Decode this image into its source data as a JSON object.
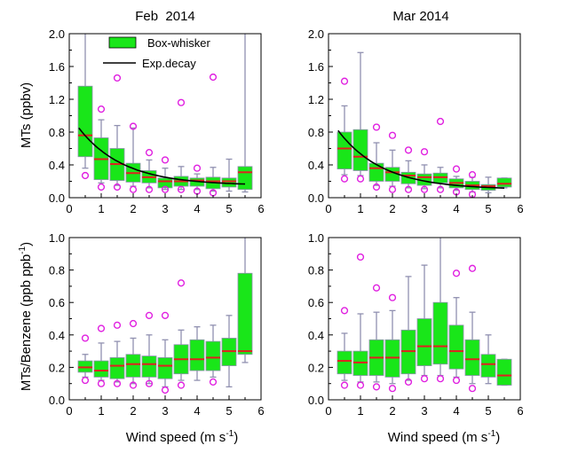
{
  "figure": {
    "xlabel_main": "Wind speed (m s",
    "xlabel_sup": "-1",
    "xlabel_close": ")",
    "ylabel_top": "MTs (ppbv)",
    "ylabel_bottom_main": "MTs/Benzene (ppb ppb",
    "ylabel_bottom_sup": "-1",
    "ylabel_bottom_close": ")",
    "legend": {
      "box_label": "Box-whisker",
      "line_label": "Exp.decay"
    },
    "colors": {
      "box_fill": "#19e619",
      "median": "#e02020",
      "whisker": "#9090b0",
      "outlier": "#e020e0",
      "curve": "#000000"
    }
  },
  "chart_data": [
    {
      "type": "box",
      "title": "Feb  2014",
      "ylabel": "MTs (ppbv)",
      "xlabel": "",
      "xlim": [
        0,
        6
      ],
      "ylim": [
        0,
        2.0
      ],
      "xticks": [
        0,
        1,
        2,
        3,
        4,
        5,
        6
      ],
      "yticks": [
        "0.0",
        "0.4",
        "0.8",
        "1.2",
        "1.6",
        "2.0"
      ],
      "legend": true,
      "boxes": [
        {
          "x": 0.5,
          "q1": 0.5,
          "median": 0.76,
          "q3": 1.36,
          "wlo": 0.36,
          "whi": 2.0,
          "outliers": [
            0.27
          ]
        },
        {
          "x": 1.0,
          "q1": 0.22,
          "median": 0.47,
          "q3": 0.73,
          "wlo": 0.18,
          "whi": 0.95,
          "outliers": [
            1.08,
            0.13
          ]
        },
        {
          "x": 1.5,
          "q1": 0.21,
          "median": 0.41,
          "q3": 0.6,
          "wlo": 0.15,
          "whi": 0.88,
          "outliers": [
            1.46,
            0.13
          ]
        },
        {
          "x": 2.0,
          "q1": 0.19,
          "median": 0.3,
          "q3": 0.42,
          "wlo": 0.14,
          "whi": 0.85,
          "outliers": [
            0.87,
            0.1
          ]
        },
        {
          "x": 2.5,
          "q1": 0.18,
          "median": 0.25,
          "q3": 0.33,
          "wlo": 0.12,
          "whi": 0.46,
          "outliers": [
            0.55,
            0.1
          ]
        },
        {
          "x": 3.0,
          "q1": 0.12,
          "median": 0.2,
          "q3": 0.24,
          "wlo": 0.1,
          "whi": 0.36,
          "outliers": [
            0.46,
            0.1
          ]
        },
        {
          "x": 3.5,
          "q1": 0.14,
          "median": 0.2,
          "q3": 0.26,
          "wlo": 0.1,
          "whi": 0.38,
          "outliers": [
            1.16,
            0.1
          ]
        },
        {
          "x": 4.0,
          "q1": 0.14,
          "median": 0.21,
          "q3": 0.24,
          "wlo": 0.1,
          "whi": 0.29,
          "outliers": [
            0.36,
            0.08
          ]
        },
        {
          "x": 4.5,
          "q1": 0.11,
          "median": 0.2,
          "q3": 0.25,
          "wlo": 0.08,
          "whi": 0.37,
          "outliers": [
            1.47,
            0.06
          ]
        },
        {
          "x": 5.0,
          "q1": 0.13,
          "median": 0.2,
          "q3": 0.24,
          "wlo": 0.08,
          "whi": 0.47,
          "outliers": []
        },
        {
          "x": 5.5,
          "q1": 0.1,
          "median": 0.31,
          "q3": 0.38,
          "wlo": 0.07,
          "whi": 2.0,
          "outliers": []
        }
      ],
      "curve": {
        "a": 0.7,
        "b": 0.72,
        "c": 0.15
      }
    },
    {
      "type": "box",
      "title": "Mar 2014",
      "ylabel": "",
      "xlabel": "",
      "xlim": [
        0,
        6
      ],
      "ylim": [
        0,
        2.0
      ],
      "xticks": [
        0,
        1,
        2,
        3,
        4,
        5,
        6
      ],
      "yticks": [
        "0.0",
        "0.4",
        "0.8",
        "1.2",
        "1.6",
        "2.0"
      ],
      "legend": false,
      "boxes": [
        {
          "x": 0.5,
          "q1": 0.35,
          "median": 0.6,
          "q3": 0.8,
          "wlo": 0.28,
          "whi": 1.12,
          "outliers": [
            1.42,
            0.23
          ]
        },
        {
          "x": 1.0,
          "q1": 0.33,
          "median": 0.5,
          "q3": 0.83,
          "wlo": 0.27,
          "whi": 1.77,
          "outliers": [
            0.23
          ]
        },
        {
          "x": 1.5,
          "q1": 0.2,
          "median": 0.36,
          "q3": 0.42,
          "wlo": 0.15,
          "whi": 0.67,
          "outliers": [
            0.86,
            0.13
          ]
        },
        {
          "x": 2.0,
          "q1": 0.2,
          "median": 0.31,
          "q3": 0.37,
          "wlo": 0.14,
          "whi": 0.58,
          "outliers": [
            0.76,
            0.1
          ]
        },
        {
          "x": 2.5,
          "q1": 0.17,
          "median": 0.27,
          "q3": 0.31,
          "wlo": 0.12,
          "whi": 0.45,
          "outliers": [
            0.58,
            0.1
          ]
        },
        {
          "x": 3.0,
          "q1": 0.15,
          "median": 0.25,
          "q3": 0.29,
          "wlo": 0.11,
          "whi": 0.4,
          "outliers": [
            0.56,
            0.1
          ]
        },
        {
          "x": 3.5,
          "q1": 0.18,
          "median": 0.25,
          "q3": 0.3,
          "wlo": 0.12,
          "whi": 0.37,
          "outliers": [
            0.93,
            0.1
          ]
        },
        {
          "x": 4.0,
          "q1": 0.12,
          "median": 0.18,
          "q3": 0.23,
          "wlo": 0.09,
          "whi": 0.26,
          "outliers": [
            0.35,
            0.07
          ]
        },
        {
          "x": 4.5,
          "q1": 0.1,
          "median": 0.15,
          "q3": 0.2,
          "wlo": 0.07,
          "whi": 0.25,
          "outliers": [
            0.28,
            0.04
          ]
        },
        {
          "x": 5.0,
          "q1": 0.09,
          "median": 0.14,
          "q3": 0.16,
          "wlo": 0.06,
          "whi": 0.25,
          "outliers": []
        },
        {
          "x": 5.5,
          "q1": 0.13,
          "median": 0.17,
          "q3": 0.24,
          "wlo": 0.12,
          "whi": 0.24,
          "outliers": []
        }
      ],
      "curve": {
        "a": 0.72,
        "b": 0.72,
        "c": 0.1
      }
    },
    {
      "type": "box",
      "title": "",
      "ylabel": "MTs/Benzene (ppb ppb-1)",
      "xlabel": "Wind speed (m s-1)",
      "xlim": [
        0,
        6
      ],
      "ylim": [
        0,
        1.0
      ],
      "xticks": [
        0,
        1,
        2,
        3,
        4,
        5,
        6
      ],
      "yticks": [
        "0.0",
        "0.2",
        "0.4",
        "0.6",
        "0.8",
        "1.0"
      ],
      "legend": false,
      "boxes": [
        {
          "x": 0.5,
          "q1": 0.17,
          "median": 0.2,
          "q3": 0.24,
          "wlo": 0.14,
          "whi": 0.28,
          "outliers": [
            0.38,
            0.12
          ]
        },
        {
          "x": 1.0,
          "q1": 0.14,
          "median": 0.18,
          "q3": 0.24,
          "wlo": 0.12,
          "whi": 0.35,
          "outliers": [
            0.44,
            0.1
          ]
        },
        {
          "x": 1.5,
          "q1": 0.13,
          "median": 0.21,
          "q3": 0.26,
          "wlo": 0.11,
          "whi": 0.36,
          "outliers": [
            0.46,
            0.1
          ]
        },
        {
          "x": 2.0,
          "q1": 0.14,
          "median": 0.22,
          "q3": 0.28,
          "wlo": 0.1,
          "whi": 0.38,
          "outliers": [
            0.47,
            0.09
          ]
        },
        {
          "x": 2.5,
          "q1": 0.14,
          "median": 0.22,
          "q3": 0.27,
          "wlo": 0.1,
          "whi": 0.4,
          "outliers": [
            0.52,
            0.1
          ]
        },
        {
          "x": 3.0,
          "q1": 0.13,
          "median": 0.21,
          "q3": 0.26,
          "wlo": 0.08,
          "whi": 0.37,
          "outliers": [
            0.52,
            0.06
          ]
        },
        {
          "x": 3.5,
          "q1": 0.16,
          "median": 0.25,
          "q3": 0.34,
          "wlo": 0.12,
          "whi": 0.43,
          "outliers": [
            0.72,
            0.09
          ]
        },
        {
          "x": 4.0,
          "q1": 0.18,
          "median": 0.25,
          "q3": 0.37,
          "wlo": 0.12,
          "whi": 0.45,
          "outliers": []
        },
        {
          "x": 4.5,
          "q1": 0.18,
          "median": 0.26,
          "q3": 0.36,
          "wlo": 0.14,
          "whi": 0.46,
          "outliers": [
            0.11
          ]
        },
        {
          "x": 5.0,
          "q1": 0.21,
          "median": 0.3,
          "q3": 0.38,
          "wlo": 0.08,
          "whi": 0.52,
          "outliers": []
        },
        {
          "x": 5.5,
          "q1": 0.28,
          "median": 0.3,
          "q3": 0.78,
          "wlo": 0.23,
          "whi": 1.0,
          "outliers": []
        }
      ]
    },
    {
      "type": "box",
      "title": "",
      "ylabel": "",
      "xlabel": "Wind speed (m s-1)",
      "xlim": [
        0,
        6
      ],
      "ylim": [
        0,
        1.0
      ],
      "xticks": [
        0,
        1,
        2,
        3,
        4,
        5,
        6
      ],
      "yticks": [
        "0.0",
        "0.2",
        "0.4",
        "0.6",
        "0.8",
        "1.0"
      ],
      "legend": false,
      "boxes": [
        {
          "x": 0.5,
          "q1": 0.16,
          "median": 0.24,
          "q3": 0.3,
          "wlo": 0.12,
          "whi": 0.41,
          "outliers": [
            0.55,
            0.09
          ]
        },
        {
          "x": 1.0,
          "q1": 0.15,
          "median": 0.23,
          "q3": 0.3,
          "wlo": 0.11,
          "whi": 0.53,
          "outliers": [
            0.88,
            0.09
          ]
        },
        {
          "x": 1.5,
          "q1": 0.15,
          "median": 0.26,
          "q3": 0.37,
          "wlo": 0.11,
          "whi": 0.54,
          "outliers": [
            0.69,
            0.08
          ]
        },
        {
          "x": 2.0,
          "q1": 0.14,
          "median": 0.26,
          "q3": 0.37,
          "wlo": 0.1,
          "whi": 0.55,
          "outliers": [
            0.63,
            0.07
          ]
        },
        {
          "x": 2.5,
          "q1": 0.16,
          "median": 0.3,
          "q3": 0.43,
          "wlo": 0.12,
          "whi": 0.76,
          "outliers": [
            0.11
          ]
        },
        {
          "x": 3.0,
          "q1": 0.21,
          "median": 0.33,
          "q3": 0.5,
          "wlo": 0.15,
          "whi": 0.83,
          "outliers": [
            0.13
          ]
        },
        {
          "x": 3.5,
          "q1": 0.22,
          "median": 0.33,
          "q3": 0.6,
          "wlo": 0.15,
          "whi": 1.0,
          "outliers": [
            0.13
          ]
        },
        {
          "x": 4.0,
          "q1": 0.19,
          "median": 0.3,
          "q3": 0.46,
          "wlo": 0.14,
          "whi": 0.63,
          "outliers": [
            0.78,
            0.12
          ]
        },
        {
          "x": 4.5,
          "q1": 0.15,
          "median": 0.25,
          "q3": 0.37,
          "wlo": 0.1,
          "whi": 0.54,
          "outliers": [
            0.81,
            0.07
          ]
        },
        {
          "x": 5.0,
          "q1": 0.14,
          "median": 0.22,
          "q3": 0.28,
          "wlo": 0.1,
          "whi": 0.4,
          "outliers": []
        },
        {
          "x": 5.5,
          "q1": 0.09,
          "median": 0.15,
          "q3": 0.25,
          "wlo": 0.09,
          "whi": 0.25,
          "outliers": []
        }
      ]
    }
  ]
}
